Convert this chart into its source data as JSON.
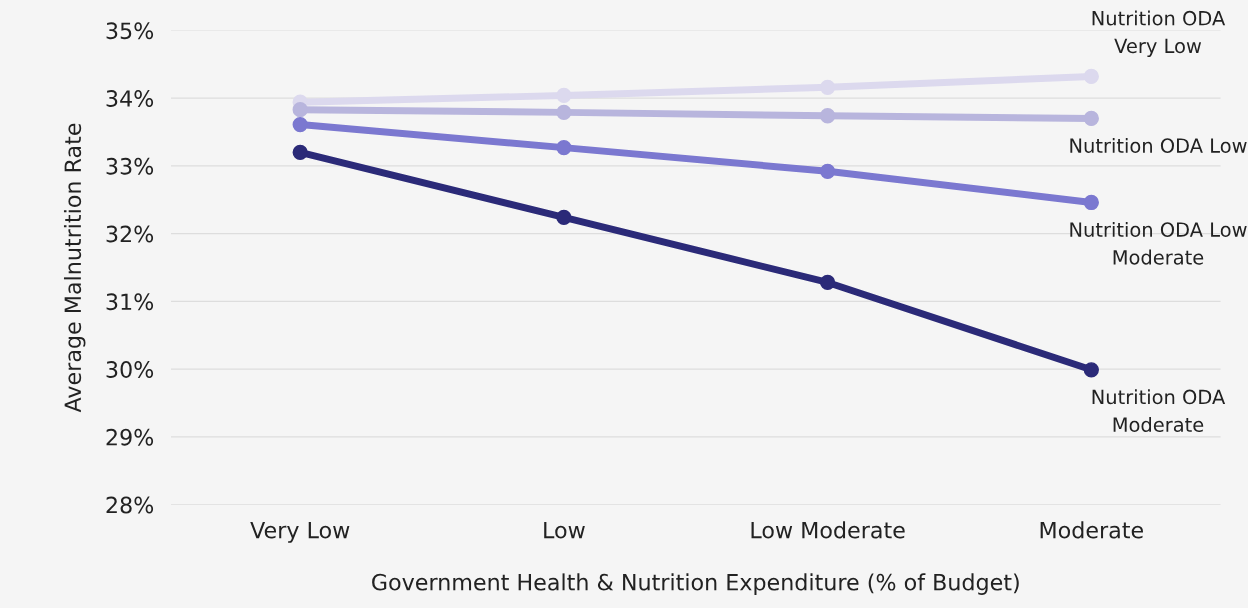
{
  "chart_data": {
    "type": "line",
    "xlabel": "Government Health & Nutrition Expenditure (% of Budget)",
    "ylabel": "Average Malnutrition Rate",
    "categories": [
      "Very Low",
      "Low",
      "Low Moderate",
      "Moderate"
    ],
    "series": [
      {
        "name": "Nutrition ODA Very Low",
        "color": "#dcd9ee",
        "values": [
          33.94,
          34.04,
          34.16,
          34.32
        ]
      },
      {
        "name": "Nutrition ODA Low",
        "color": "#b8b5dd",
        "values": [
          33.83,
          33.79,
          33.74,
          33.7
        ]
      },
      {
        "name": "Nutrition ODA Low Moderate",
        "color": "#7b78d0",
        "values": [
          33.61,
          33.27,
          32.92,
          32.46
        ]
      },
      {
        "name": "Nutrition ODA Moderate",
        "color": "#2b2a78",
        "values": [
          33.2,
          32.24,
          31.28,
          29.99
        ]
      }
    ],
    "ylim": [
      28,
      35
    ],
    "yticks": [
      {
        "value": 28,
        "label": "28%"
      },
      {
        "value": 29,
        "label": "29%"
      },
      {
        "value": 30,
        "label": "30%"
      },
      {
        "value": 31,
        "label": "31%"
      },
      {
        "value": 32,
        "label": "32%"
      },
      {
        "value": 33,
        "label": "33%"
      },
      {
        "value": 34,
        "label": "34%"
      },
      {
        "value": 35,
        "label": "35%"
      }
    ],
    "grid": "y",
    "marker": "circle",
    "line_style": "solid",
    "legend": false
  }
}
